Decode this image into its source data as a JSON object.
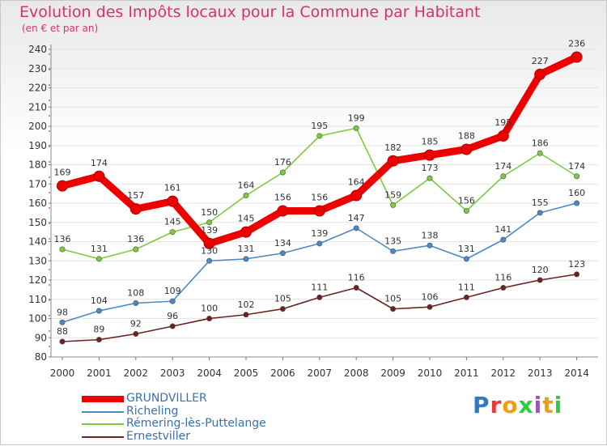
{
  "header": {
    "title": "Evolution des Impôts locaux pour la Commune par Habitant",
    "subtitle": "(en € et par an)"
  },
  "brand": {
    "letters": [
      "P",
      "r",
      "o",
      "x",
      "i",
      "t",
      "i"
    ],
    "colors": [
      "#2e7bc4",
      "#e53b3b",
      "#f39c12",
      "#2ecc40",
      "#9b59b6",
      "#f39c12",
      "#2ecc40"
    ]
  },
  "chart_data": {
    "type": "line",
    "title": "Evolution des Impôts locaux pour la Commune par Habitant",
    "subtitle": "(en € et par an)",
    "xlabel": "",
    "ylabel": "",
    "ylim": [
      80,
      240
    ],
    "yticks": [
      80,
      90,
      100,
      110,
      120,
      130,
      140,
      150,
      160,
      170,
      180,
      190,
      200,
      210,
      220,
      230,
      240
    ],
    "categories": [
      "2000",
      "2001",
      "2002",
      "2003",
      "2004",
      "2005",
      "2006",
      "2007",
      "2008",
      "2009",
      "2010",
      "2011",
      "2012",
      "2013",
      "2014"
    ],
    "legend_position": "bottom-left",
    "series": [
      {
        "name": "GRUNDVILLER",
        "color": "#ee0000",
        "emphasis": true,
        "values": [
          169,
          174,
          157,
          161,
          139,
          145,
          156,
          156,
          164,
          182,
          185,
          188,
          195,
          227,
          236
        ],
        "labels": [
          "169",
          "174",
          "157",
          "161",
          "139",
          "145",
          "156",
          "156",
          "164",
          "182",
          "185",
          "188",
          "195",
          "227",
          "236"
        ]
      },
      {
        "name": "Richeling",
        "color": "#4a88c7",
        "emphasis": false,
        "values": [
          98,
          104,
          108,
          109,
          130,
          131,
          134,
          139,
          147,
          135,
          138,
          131,
          141,
          155,
          160
        ],
        "labels": [
          "98",
          "104",
          "108",
          "109",
          "130",
          "131",
          "134",
          "139",
          "147",
          "135",
          "138",
          "131",
          "141",
          "155",
          "160"
        ]
      },
      {
        "name": "Rémering-lès-Puttelange",
        "color": "#7ccc3a",
        "emphasis": false,
        "values": [
          136,
          131,
          136,
          145,
          150,
          164,
          176,
          195,
          199,
          159,
          173,
          156,
          174,
          186,
          174
        ],
        "labels": [
          "136",
          "131",
          "136",
          "145",
          "150",
          "164",
          "176",
          "195",
          "199",
          "159",
          "173",
          "156",
          "174",
          "186",
          "174"
        ]
      },
      {
        "name": "Ernestviller",
        "color": "#6e2020",
        "emphasis": false,
        "values": [
          88,
          89,
          92,
          96,
          100,
          102,
          105,
          111,
          116,
          105,
          106,
          111,
          116,
          120,
          123
        ],
        "labels": [
          "88",
          "89",
          "92",
          "96",
          "100",
          "102",
          "105",
          "111",
          "116",
          "105",
          "106",
          "111",
          "116",
          "120",
          "123"
        ]
      }
    ]
  }
}
